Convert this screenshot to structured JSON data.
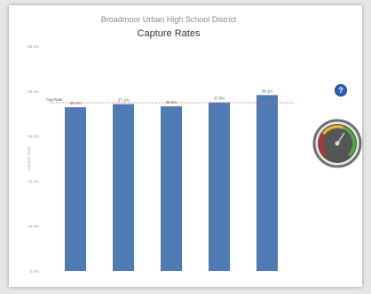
{
  "chart_data": {
    "type": "bar",
    "subtitle": "Broadmoor Urban High School District",
    "title": "Capture Rates",
    "categories": [
      "",
      "",
      "",
      "",
      ""
    ],
    "values": [
      36.4,
      37.1,
      36.6,
      37.5,
      39.1
    ],
    "data_labels": [
      "36.4%",
      "37.1%",
      "36.6%",
      "37.5%",
      "39.1%"
    ],
    "target_value": 37.4,
    "target_label": "Avg Rate",
    "ylabel": "Capture Rate",
    "ylim": [
      0,
      50
    ],
    "yticks": [
      0,
      10,
      20,
      30,
      40,
      50
    ],
    "ytick_labels": [
      "0.0%",
      "10.0%",
      "20.0%",
      "30.0%",
      "40.0%",
      "50.0%"
    ],
    "bar_color": "#4f7ab3",
    "target_line_color": "#e07070",
    "grid": false
  },
  "help_label": "?",
  "gauge": {
    "ring_color": "#707070",
    "face_color": "#555555",
    "zone_colors": [
      "#cc2a2a",
      "#e6b82e",
      "#4caf3a"
    ]
  }
}
